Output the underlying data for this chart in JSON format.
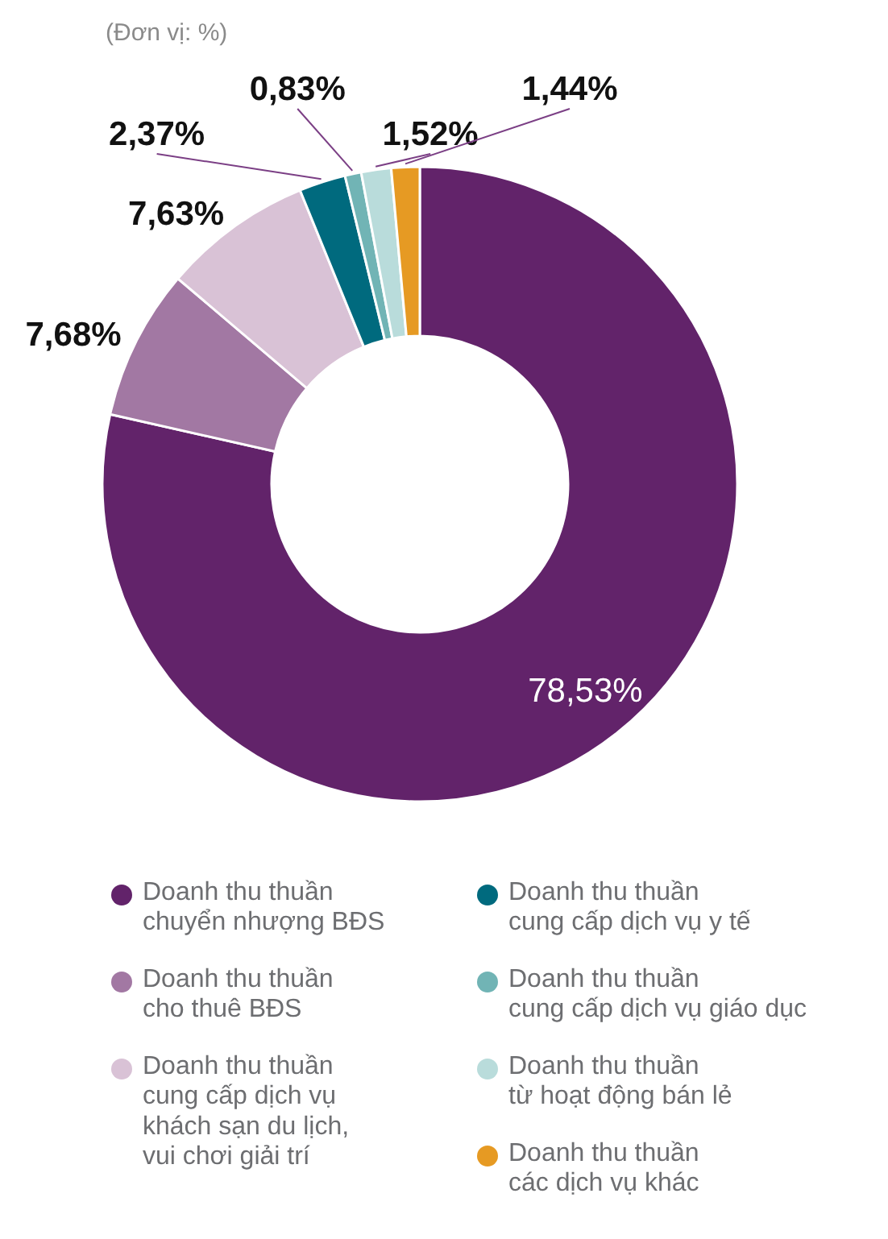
{
  "chart_data": {
    "type": "donut",
    "title": "(Đơn vị: %)",
    "categories": [
      "Doanh thu thuần\nchuyển nhượng BĐS",
      "Doanh thu thuần\ncho thuê BĐS",
      "Doanh thu thuần\ncung cấp dịch vụ\nkhách sạn du lịch,\nvui chơi giải trí",
      "Doanh thu thuần\ncung cấp dịch vụ y tế",
      "Doanh thu thuần\ncung cấp dịch vụ giáo dục",
      "Doanh thu thuần\ntừ hoạt động bán lẻ",
      "Doanh thu thuần\ncác dịch vụ khác"
    ],
    "values": [
      78.53,
      7.68,
      7.63,
      2.37,
      0.83,
      1.52,
      1.44
    ],
    "value_labels": [
      "78,53%",
      "7,68%",
      "7,63%",
      "2,37%",
      "0,83%",
      "1,52%",
      "1,44%"
    ],
    "colors": [
      "#62236a",
      "#a278a3",
      "#d9c2d6",
      "#006a7e",
      "#71b4b5",
      "#b9dcdb",
      "#e69a23"
    ],
    "legend": "bottom"
  }
}
